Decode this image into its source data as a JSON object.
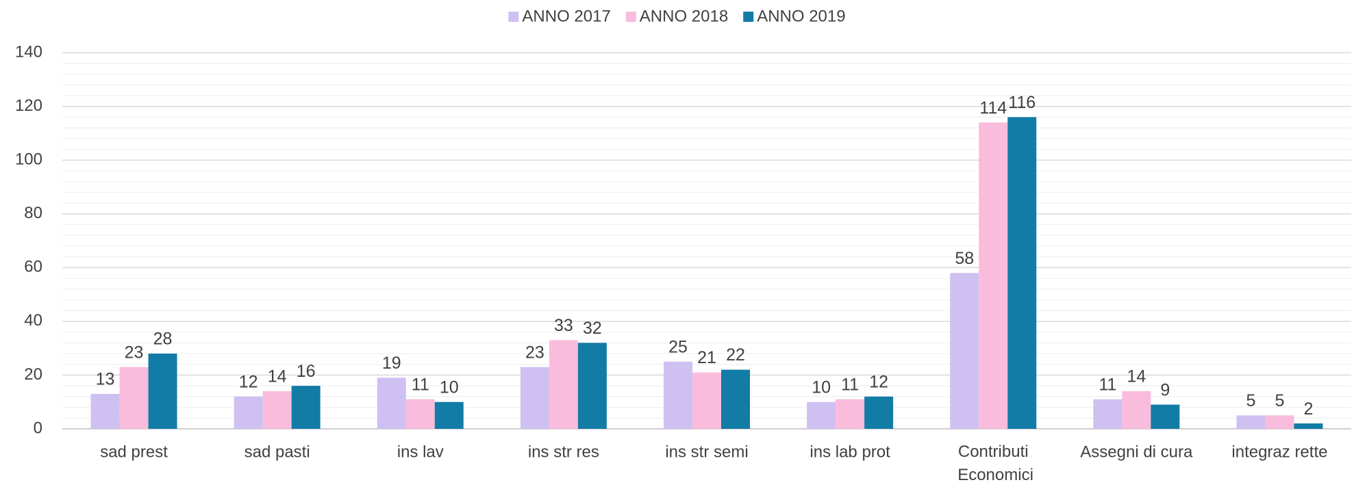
{
  "chart_data": {
    "type": "bar",
    "categories": [
      "sad prest",
      "sad pasti",
      "ins lav",
      "ins str res",
      "ins str semi",
      "ins lab prot",
      "Contributi Economici",
      "Assegni di cura",
      "integraz rette"
    ],
    "series": [
      {
        "name": "ANNO 2017",
        "color": "#cfc0f2",
        "values": [
          13,
          12,
          19,
          23,
          25,
          10,
          58,
          11,
          5
        ]
      },
      {
        "name": "ANNO 2018",
        "color": "#f9bcdc",
        "values": [
          23,
          14,
          11,
          33,
          21,
          11,
          114,
          14,
          5
        ]
      },
      {
        "name": "ANNO 2019",
        "color": "#127ca6",
        "values": [
          28,
          16,
          10,
          32,
          22,
          12,
          116,
          9,
          2
        ]
      }
    ],
    "ylim": [
      0,
      140
    ],
    "yticks": [
      0,
      20,
      40,
      60,
      80,
      100,
      120,
      140
    ],
    "grid": true,
    "minor_grid_divisions": 5,
    "legend": "top"
  }
}
